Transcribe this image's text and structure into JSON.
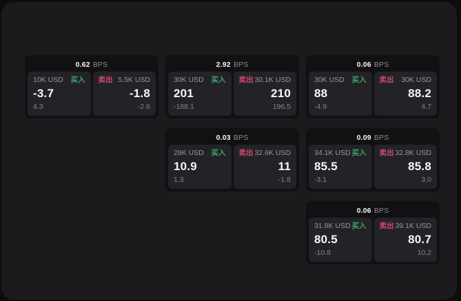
{
  "labels": {
    "bps_unit": "BPS",
    "buy": "买入",
    "sell": "卖出"
  },
  "colors": {
    "page_background": "#0d0d0d",
    "panel_background": "#1b1b1d",
    "card_background": "#111113",
    "tile_background": "#232327",
    "buy_green": "#3fa56a",
    "sell_red": "#cf4a6e",
    "primary_text": "#f5f5f5",
    "muted_text": "#98989d"
  },
  "cards": [
    {
      "bps": "0.62",
      "buy": {
        "amount": "10K USD",
        "price": "-3.7",
        "delta": "4.3"
      },
      "sell": {
        "amount": "5.5K USD",
        "price": "-1.8",
        "delta": "-2.6"
      }
    },
    {
      "bps": "2.92",
      "buy": {
        "amount": "30K USD",
        "price": "201",
        "delta": "-188.1"
      },
      "sell": {
        "amount": "30.1K USD",
        "price": "210",
        "delta": "196.5"
      }
    },
    {
      "bps": "0.06",
      "buy": {
        "amount": "30K USD",
        "price": "88",
        "delta": "-4.9"
      },
      "sell": {
        "amount": "30K USD",
        "price": "88.2",
        "delta": "4.7"
      }
    },
    {
      "bps": "0.03",
      "buy": {
        "amount": "28K USD",
        "price": "10.9",
        "delta": "1.3"
      },
      "sell": {
        "amount": "32.6K USD",
        "price": "11",
        "delta": "-1.8"
      }
    },
    {
      "bps": "0.09",
      "buy": {
        "amount": "34.1K USD",
        "price": "85.5",
        "delta": "-3.1"
      },
      "sell": {
        "amount": "32.8K USD",
        "price": "85.8",
        "delta": "3.0"
      }
    },
    {
      "bps": "0.06",
      "buy": {
        "amount": "31.8K USD",
        "price": "80.5",
        "delta": "-10.8"
      },
      "sell": {
        "amount": "39.1K USD",
        "price": "80.7",
        "delta": "10.2"
      }
    }
  ]
}
